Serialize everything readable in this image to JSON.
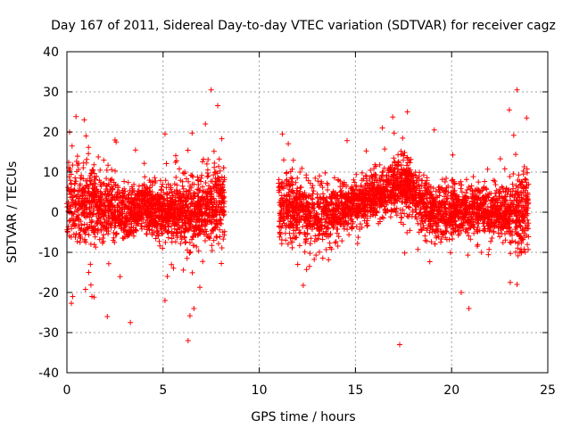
{
  "chart_data": {
    "type": "scatter",
    "title": "Day 167 of 2011, Sidereal Day-to-day VTEC variation (SDTVAR) for receiver cagz",
    "xlabel": "GPS time / hours",
    "ylabel": "SDTVAR / TECUs",
    "xlim": [
      0,
      25
    ],
    "ylim": [
      -40,
      40
    ],
    "xticks": [
      "0",
      "5",
      "10",
      "15",
      "20",
      "25"
    ],
    "yticks": [
      "-40",
      "-30",
      "-20",
      "-10",
      "0",
      "10",
      "20",
      "30",
      "40"
    ],
    "grid": true,
    "marker": "+",
    "series_color": "#ff0000",
    "data_gap": [
      8.2,
      11.0
    ],
    "series": [
      {
        "name": "SDTVAR",
        "envelope": [
          {
            "x": 0.0,
            "mean": 2,
            "spread": 8
          },
          {
            "x": 1.0,
            "mean": 2,
            "spread": 9
          },
          {
            "x": 2.0,
            "mean": 1,
            "spread": 7
          },
          {
            "x": 3.0,
            "mean": 0,
            "spread": 6
          },
          {
            "x": 4.0,
            "mean": 1,
            "spread": 5
          },
          {
            "x": 5.0,
            "mean": 0,
            "spread": 6
          },
          {
            "x": 6.0,
            "mean": 0,
            "spread": 7
          },
          {
            "x": 7.0,
            "mean": 1,
            "spread": 8
          },
          {
            "x": 8.2,
            "mean": 2,
            "spread": 9
          },
          {
            "x": 11.0,
            "mean": 2,
            "spread": 8
          },
          {
            "x": 12.0,
            "mean": 1,
            "spread": 7
          },
          {
            "x": 13.0,
            "mean": -1,
            "spread": 7
          },
          {
            "x": 14.0,
            "mean": 0,
            "spread": 6
          },
          {
            "x": 15.0,
            "mean": 2,
            "spread": 5
          },
          {
            "x": 16.0,
            "mean": 4,
            "spread": 5
          },
          {
            "x": 17.0,
            "mean": 6,
            "spread": 6
          },
          {
            "x": 17.8,
            "mean": 7,
            "spread": 6
          },
          {
            "x": 18.5,
            "mean": 2,
            "spread": 6
          },
          {
            "x": 19.5,
            "mean": 0,
            "spread": 6
          },
          {
            "x": 20.5,
            "mean": 0,
            "spread": 6
          },
          {
            "x": 21.5,
            "mean": 1,
            "spread": 5
          },
          {
            "x": 22.5,
            "mean": 0,
            "spread": 5
          },
          {
            "x": 23.5,
            "mean": 1,
            "spread": 8
          },
          {
            "x": 24.0,
            "mean": 1,
            "spread": 9
          }
        ],
        "outliers": [
          {
            "x": 0.9,
            "y": 23
          },
          {
            "x": 2.5,
            "y": 18
          },
          {
            "x": 2.1,
            "y": -26
          },
          {
            "x": 3.3,
            "y": -27.5
          },
          {
            "x": 5.1,
            "y": 19.5
          },
          {
            "x": 5.1,
            "y": -22
          },
          {
            "x": 6.3,
            "y": -32
          },
          {
            "x": 6.6,
            "y": -24
          },
          {
            "x": 7.2,
            "y": 22
          },
          {
            "x": 7.5,
            "y": 30.5
          },
          {
            "x": 11.2,
            "y": 19.5
          },
          {
            "x": 12.0,
            "y": -13
          },
          {
            "x": 17.3,
            "y": -33
          },
          {
            "x": 17.7,
            "y": 25
          },
          {
            "x": 16.4,
            "y": 21
          },
          {
            "x": 19.1,
            "y": 20.5
          },
          {
            "x": 20.5,
            "y": -20
          },
          {
            "x": 20.9,
            "y": -24
          },
          {
            "x": 23.0,
            "y": 25.5
          },
          {
            "x": 23.4,
            "y": 30.5
          },
          {
            "x": 23.9,
            "y": 23.5
          },
          {
            "x": 23.4,
            "y": -18
          },
          {
            "x": 0.3,
            "y": -21
          },
          {
            "x": 1.3,
            "y": -21
          }
        ]
      }
    ]
  }
}
